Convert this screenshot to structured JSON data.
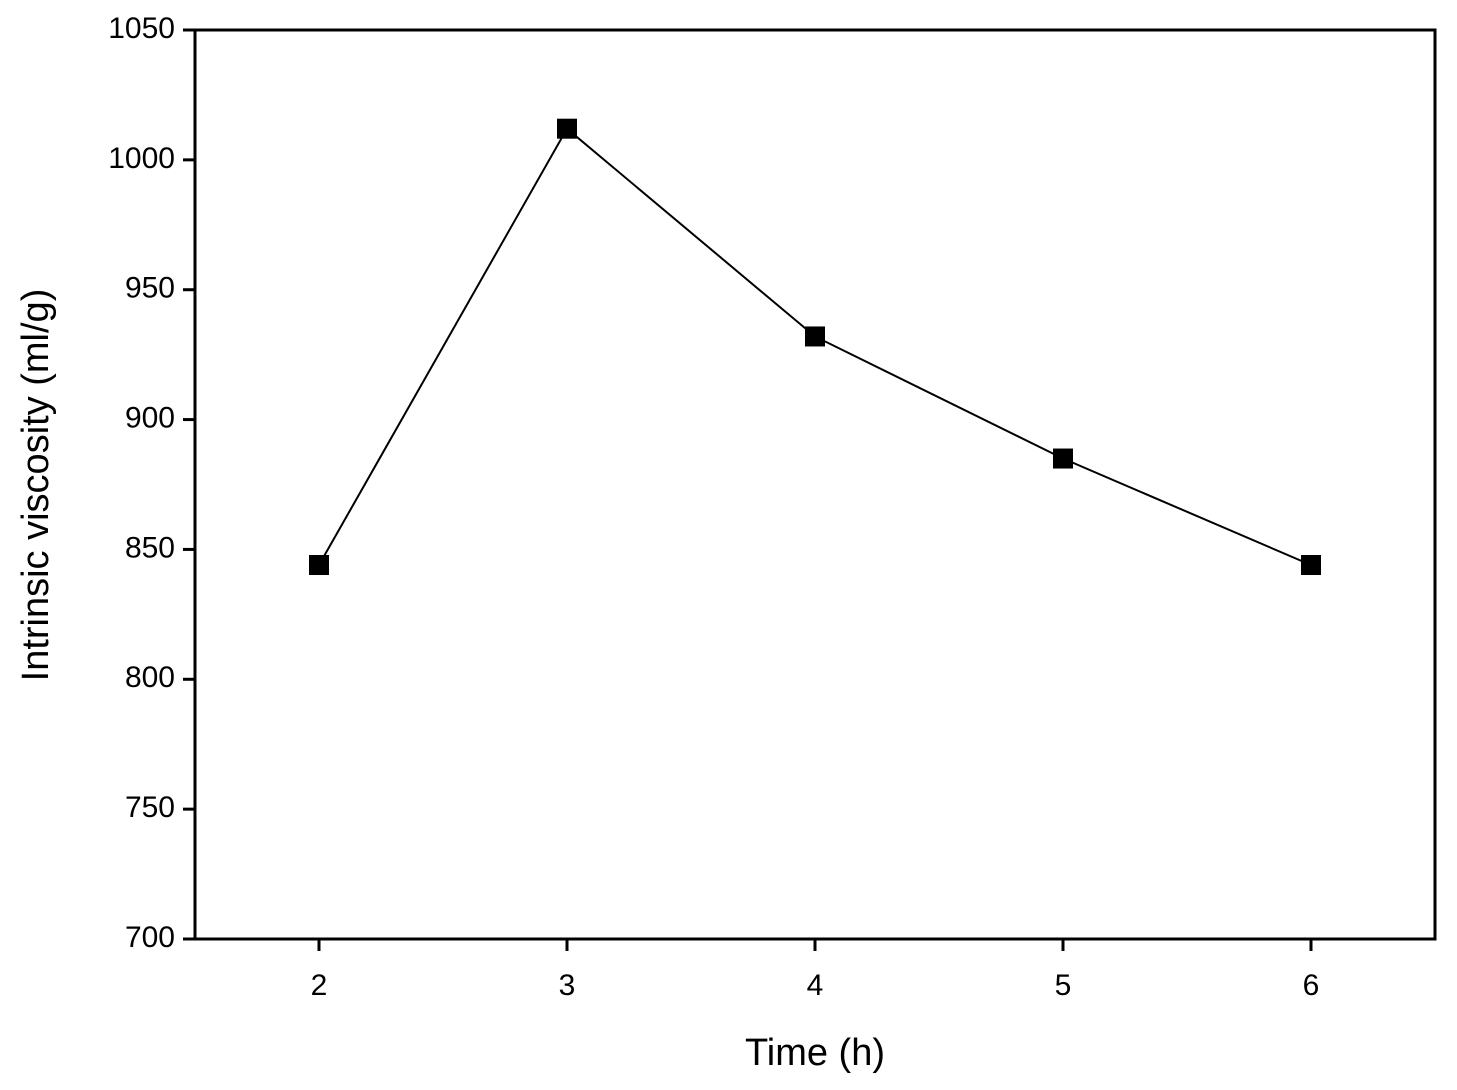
{
  "chart_data": {
    "type": "line",
    "x_label": "Time (h)",
    "y_label": "Intrinsic viscosity (ml/g)",
    "x": [
      2,
      3,
      4,
      5,
      6
    ],
    "series": [
      {
        "name": "Intrinsic viscosity",
        "color": "#000000",
        "values": [
          844,
          1012,
          932,
          885,
          844
        ]
      }
    ],
    "xlim": [
      1.5,
      6.5
    ],
    "xticks": [
      2,
      3,
      4,
      5,
      6
    ],
    "ylim": [
      700,
      1050
    ],
    "yticks": [
      700,
      750,
      800,
      850,
      900,
      950,
      1000,
      1050
    ],
    "grid": false,
    "marker": "square"
  }
}
